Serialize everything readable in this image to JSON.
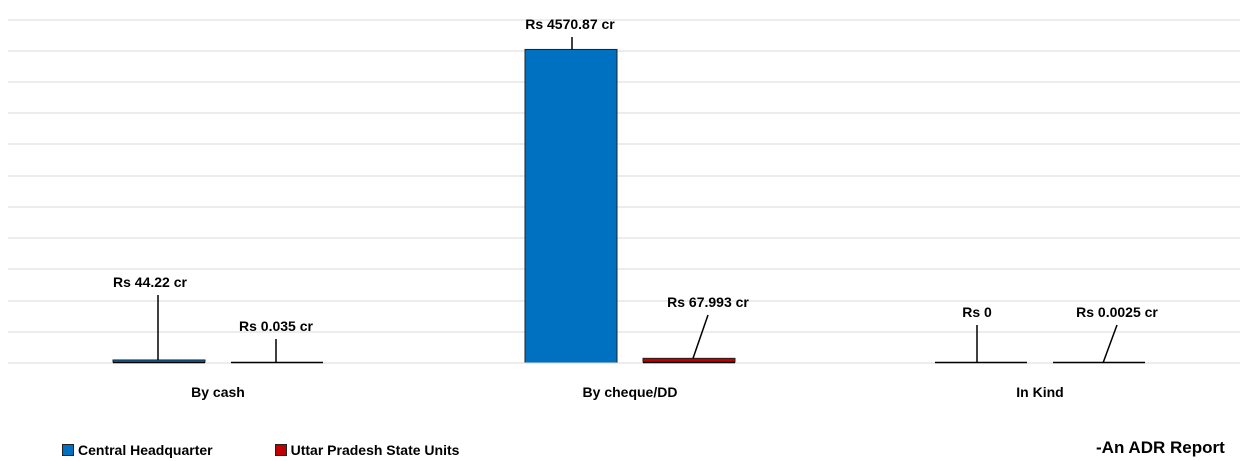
{
  "chart_data": {
    "type": "bar",
    "categories": [
      "By cash",
      "By cheque/DD",
      "In Kind"
    ],
    "series": [
      {
        "name": "Central Headquarter",
        "color": "#0070C0",
        "values": [
          44.22,
          4570.87,
          0
        ],
        "labels": [
          "Rs 44.22 cr",
          "Rs 4570.87 cr",
          "Rs 0"
        ]
      },
      {
        "name": "Uttar Pradesh State Units",
        "color": "#C00000",
        "values": [
          0.035,
          67.993,
          0.0025
        ],
        "labels": [
          "Rs 0.035 cr",
          "Rs 67.993 cr",
          "Rs 0.0025 cr"
        ]
      }
    ],
    "ylim": [
      0,
      5000
    ],
    "grid": true,
    "legend_position": "bottom-left"
  },
  "legend": {
    "items": [
      "Central Headquarter",
      "Uttar Pradesh State Units"
    ]
  },
  "credit": "-An ADR Report"
}
